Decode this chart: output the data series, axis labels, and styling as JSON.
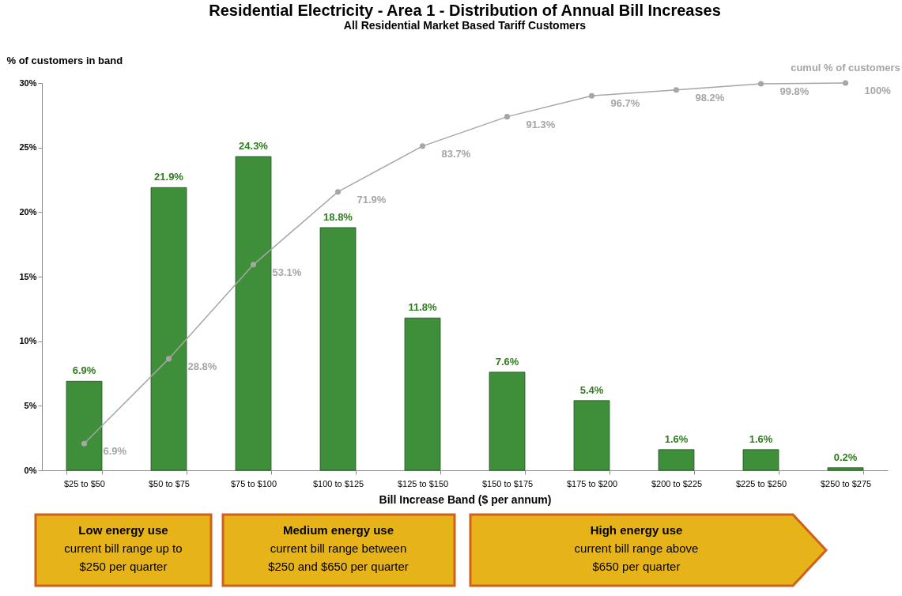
{
  "chart_data": {
    "type": "bar",
    "title": "Residential Electricity - Area 1 - Distribution of Annual Bill Increases",
    "subtitle": "All Residential  Market Based Tariff Customers",
    "xlabel": "Bill Increase Band ($ per annum)",
    "ylabel": "% of customers in band",
    "categories": [
      "$25 to $50",
      "$50 to $75",
      "$75 to $100",
      "$100 to $125",
      "$125 to $150",
      "$150 to $175",
      "$175 to $200",
      "$200 to $225",
      "$225 to $250",
      "$250 to $275"
    ],
    "series": [
      {
        "color": "#3f8f3a",
        "values": [
          6.9,
          21.9,
          24.3,
          18.8,
          11.8,
          7.6,
          5.4,
          1.6,
          1.6,
          0.2
        ],
        "value_labels": [
          "6.9%",
          "21.9%",
          "24.3%",
          "18.8%",
          "11.8%",
          "7.6%",
          "5.4%",
          "1.6%",
          "1.6%",
          "0.2%"
        ]
      },
      {
        "type": "line",
        "name": "cumul % of customers",
        "axis": "y2",
        "color": "#a6a6a6",
        "marker": "circle",
        "values": [
          6.9,
          28.8,
          53.1,
          71.9,
          83.7,
          91.3,
          96.7,
          98.2,
          99.8,
          100
        ],
        "value_labels": [
          "6.9%",
          "28.8%",
          "53.1%",
          "71.9%",
          "83.7%",
          "91.3%",
          "96.7%",
          "98.2%",
          "99.8%",
          "100%"
        ]
      }
    ],
    "ylim": [
      0,
      30
    ],
    "yticks": [
      {
        "value": 0,
        "label": "0%"
      },
      {
        "value": 5,
        "label": "5%"
      },
      {
        "value": 10,
        "label": "10%"
      },
      {
        "value": 15,
        "label": "15%"
      },
      {
        "value": 20,
        "label": "20%"
      },
      {
        "value": 25,
        "label": "25%"
      },
      {
        "value": 30,
        "label": "30%"
      }
    ],
    "grid": false,
    "annotations": [
      "Low energy use\ncurrent bill range up to\n$250 per quarter",
      "Medium energy use\ncurrent bill range between\n$250 and $650  per quarter",
      "High energy use\ncurrent bill range above\n$650  per quarter"
    ]
  }
}
